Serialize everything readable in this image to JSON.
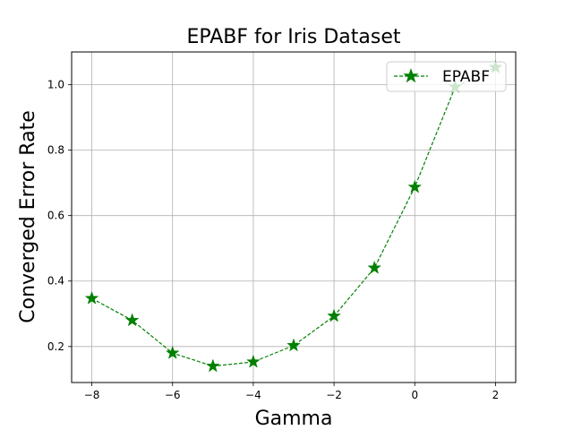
{
  "chart_data": {
    "type": "line",
    "title": "EPABF for Iris Dataset",
    "xlabel": "Gamma",
    "ylabel": "Converged Error Rate",
    "xlim": [
      -8.5,
      2.5
    ],
    "ylim": [
      0.09,
      1.1
    ],
    "xticks": [
      -8,
      -6,
      -4,
      -2,
      0,
      2
    ],
    "xtick_labels": [
      "−8",
      "−6",
      "−4",
      "−2",
      "0",
      "2"
    ],
    "yticks": [
      0.2,
      0.4,
      0.6,
      0.8,
      1.0
    ],
    "ytick_labels": [
      "0.2",
      "0.4",
      "0.6",
      "0.8",
      "1.0"
    ],
    "grid": true,
    "legend_position": "top-right",
    "series": [
      {
        "name": "EPABF",
        "color": "#008000",
        "line_style": "dashed",
        "marker": "star",
        "x": [
          -8,
          -7,
          -6,
          -5,
          -4,
          -3,
          -2,
          -1,
          0,
          1,
          2
        ],
        "y": [
          0.347,
          0.28,
          0.18,
          0.14,
          0.153,
          0.203,
          0.293,
          0.44,
          0.687,
          0.993,
          1.053
        ]
      }
    ]
  }
}
